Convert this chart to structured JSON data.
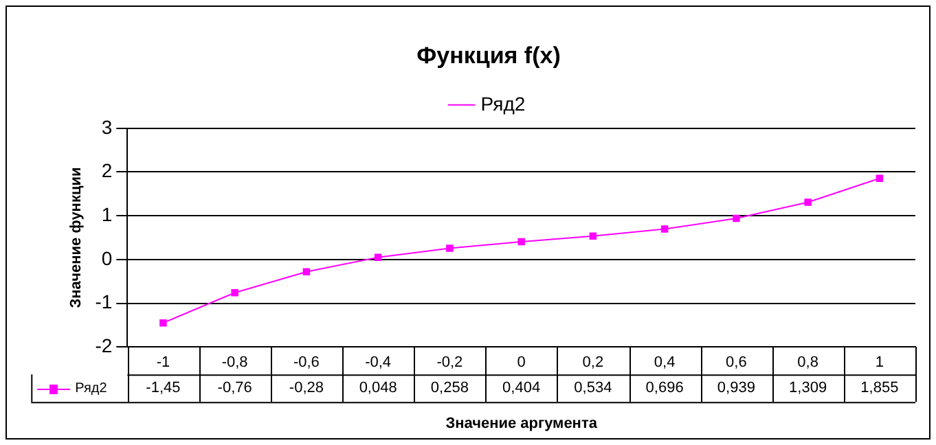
{
  "chart_data": {
    "type": "line",
    "title": "Функция f(x)",
    "xlabel": "Значение аргумента",
    "ylabel": "Значение функции",
    "categories": [
      "-1",
      "-0,8",
      "-0,6",
      "-0,4",
      "-0,2",
      "0",
      "0,2",
      "0,4",
      "0,6",
      "0,8",
      "1"
    ],
    "series": [
      {
        "name": "Ряд2",
        "color": "#ff00ff",
        "values": [
          -1.45,
          -0.76,
          -0.28,
          0.048,
          0.258,
          0.404,
          0.534,
          0.696,
          0.939,
          1.309,
          1.855
        ],
        "value_labels": [
          "-1,45",
          "-0,76",
          "-0,28",
          "0,048",
          "0,258",
          "0,404",
          "0,534",
          "0,696",
          "0,939",
          "1,309",
          "1,855"
        ]
      }
    ],
    "ylim": [
      -2,
      3
    ],
    "yticks": [
      -2,
      -1,
      0,
      1,
      2,
      3
    ],
    "grid": "y",
    "legend": "top",
    "marker": "square",
    "line_style": "solid"
  }
}
